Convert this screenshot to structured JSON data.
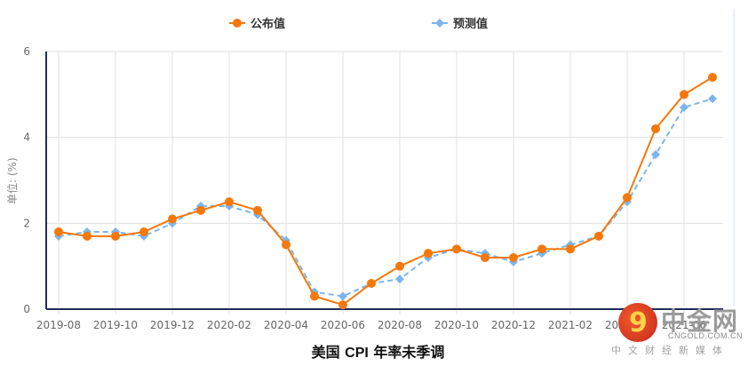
{
  "chart_data": {
    "type": "line",
    "title": "美国 CPI 年率未季调",
    "xlabel": "",
    "ylabel": "单位: (%)",
    "ylim": [
      0,
      6
    ],
    "yticks": [
      0,
      2,
      4,
      6
    ],
    "grid": true,
    "legend_position": "top",
    "x": [
      "2019-08",
      "2019-09",
      "2019-10",
      "2019-11",
      "2019-12",
      "2020-01",
      "2020-02",
      "2020-03",
      "2020-04",
      "2020-05",
      "2020-06",
      "2020-07",
      "2020-08",
      "2020-09",
      "2020-10",
      "2020-11",
      "2020-12",
      "2021-01",
      "2021-02",
      "2021-03",
      "2021-04",
      "2021-05",
      "2021-06",
      "2021-07"
    ],
    "xtick_labels": [
      "2019-08",
      "2019-10",
      "2019-12",
      "2020-02",
      "2020-04",
      "2020-06",
      "2020-08",
      "2020-10",
      "2020-12",
      "2021-02",
      "2021-04",
      "2021-06"
    ],
    "series": [
      {
        "name": "公布值",
        "color": "#f5780a",
        "style": "solid",
        "marker": "circle",
        "values": [
          1.8,
          1.7,
          1.7,
          1.8,
          2.1,
          2.3,
          2.5,
          2.3,
          1.5,
          0.3,
          0.1,
          0.6,
          1.0,
          1.3,
          1.4,
          1.2,
          1.2,
          1.4,
          1.4,
          1.7,
          2.6,
          4.2,
          5.0,
          5.4
        ]
      },
      {
        "name": "预测值",
        "color": "#7cb5ec",
        "style": "dashed",
        "marker": "diamond",
        "values": [
          1.7,
          1.8,
          1.8,
          1.7,
          2.0,
          2.4,
          2.4,
          2.2,
          1.6,
          0.4,
          0.3,
          0.6,
          0.7,
          1.2,
          1.4,
          1.3,
          1.1,
          1.3,
          1.5,
          1.7,
          2.5,
          3.6,
          4.7,
          4.9
        ]
      }
    ]
  },
  "title": {
    "cn_prefix": "美国 ",
    "latin": "CPI",
    "cn_suffix": " 年率未季调"
  },
  "legend": {
    "items": [
      {
        "label": "公布值"
      },
      {
        "label": "预测值"
      }
    ]
  },
  "watermark": {
    "brand": "中金网",
    "domain": "CNGOLD.COM.CN",
    "tagline": "中文财经新媒体",
    "glyph": "9"
  },
  "colors": {
    "axis": "#1f2d5a",
    "grid": "#e0e0e0",
    "published": "#f5780a",
    "forecast": "#7cb5ec"
  }
}
